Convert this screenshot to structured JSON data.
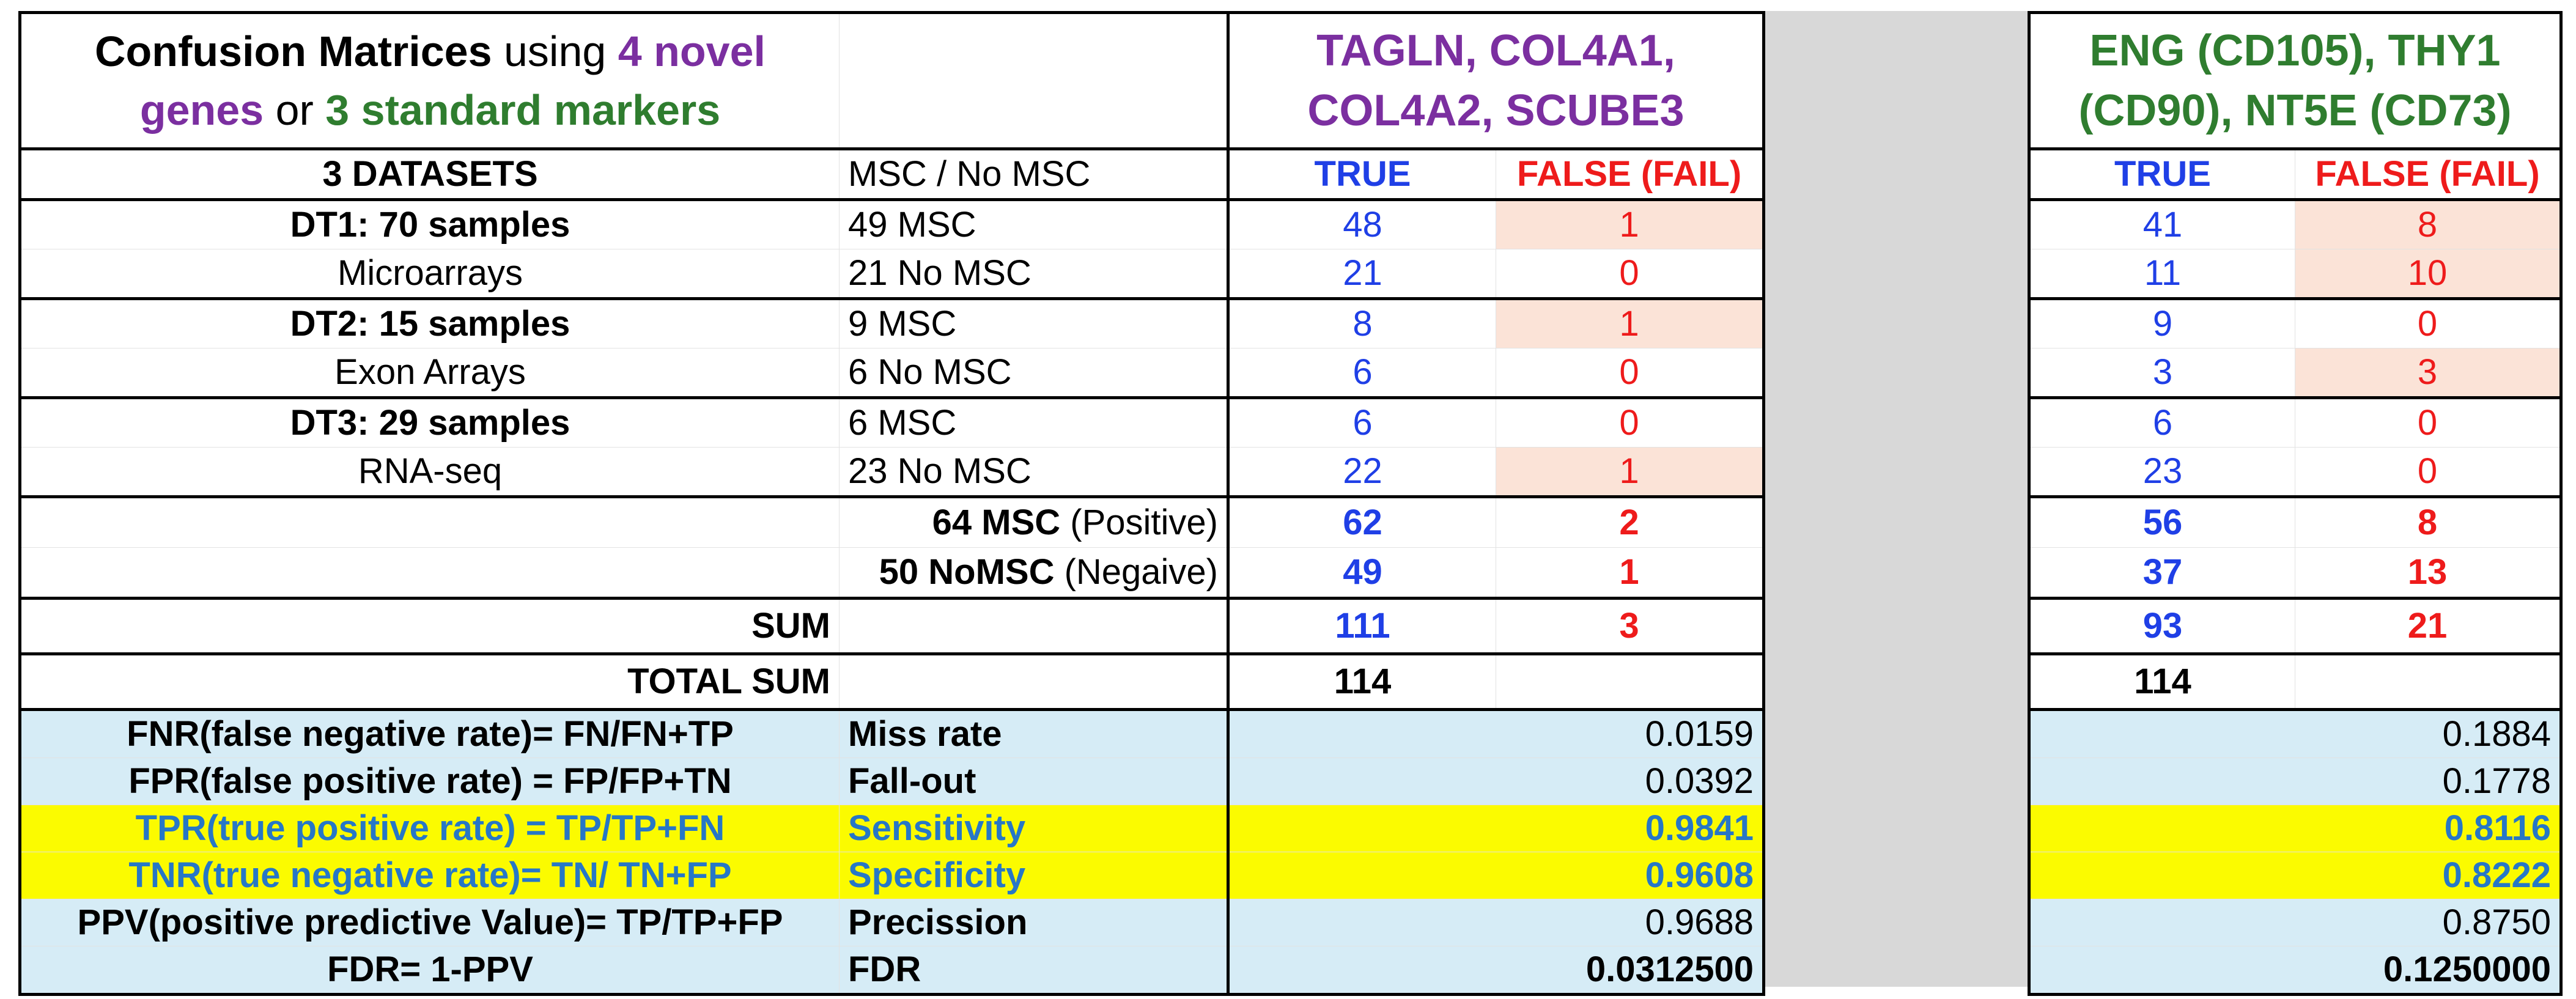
{
  "header": {
    "title_part1": "Confusion Matrices",
    "title_part2": " using ",
    "title_part3": "4 novel genes",
    "title_part4": " or ",
    "title_part5": "3 standard markers",
    "panel_a_genes": "TAGLN, COL4A1, COL4A2, SCUBE3",
    "panel_b_genes": "ENG (CD105), THY1 (CD90), NT5E (CD73)"
  },
  "columns": {
    "datasets": "3 DATASETS",
    "group": "MSC / No MSC",
    "true_label": "TRUE",
    "false_label": "FALSE (FAIL)"
  },
  "rows": [
    {
      "dataset": "DT1: 70 samples",
      "bold": true,
      "group": "49 MSC",
      "a_true": "48",
      "a_false": "1",
      "b_true": "41",
      "b_false": "8"
    },
    {
      "dataset": "Microarrays",
      "bold": false,
      "group": "21 No MSC",
      "a_true": "21",
      "a_false": "0",
      "b_true": "11",
      "b_false": "10"
    },
    {
      "dataset": "DT2: 15 samples",
      "bold": true,
      "group": "9 MSC",
      "a_true": "8",
      "a_false": "1",
      "b_true": "9",
      "b_false": "0"
    },
    {
      "dataset": "Exon Arrays",
      "bold": false,
      "group": "6 No MSC",
      "a_true": "6",
      "a_false": "0",
      "b_true": "3",
      "b_false": "3"
    },
    {
      "dataset": "DT3: 29 samples",
      "bold": true,
      "group": "6 MSC",
      "a_true": "6",
      "a_false": "0",
      "b_true": "6",
      "b_false": "0"
    },
    {
      "dataset": "RNA-seq",
      "bold": false,
      "group": "23 No MSC",
      "a_true": "22",
      "a_false": "1",
      "b_true": "23",
      "b_false": "0"
    }
  ],
  "totals": {
    "pos_bold": "64 MSC",
    "pos_suffix": " (Positive)",
    "neg_bold": "50 NoMSC",
    "neg_suffix": " (Negaive)",
    "a_pos_true": "62",
    "a_pos_false": "2",
    "a_neg_true": "49",
    "a_neg_false": "1",
    "b_pos_true": "56",
    "b_pos_false": "8",
    "b_neg_true": "37",
    "b_neg_false": "13",
    "sum_label": "SUM",
    "a_sum_true": "111",
    "a_sum_false": "3",
    "b_sum_true": "93",
    "b_sum_false": "21",
    "total_label": "TOTAL SUM",
    "a_total": "114",
    "b_total": "114"
  },
  "stats": [
    {
      "formula": "FNR(false negative rate)= FN/FN+TP",
      "name": "Miss rate",
      "a": "0.0159",
      "b": "0.1884"
    },
    {
      "formula": "FPR(false positive rate) = FP/FP+TN",
      "name": "Fall-out",
      "a": "0.0392",
      "b": "0.1778"
    },
    {
      "formula": "TPR(true positive rate) = TP/TP+FN",
      "name": "Sensitivity",
      "a": "0.9841",
      "b": "0.8116"
    },
    {
      "formula": "TNR(true negative rate)= TN/ TN+FP",
      "name": "Specificity",
      "a": "0.9608",
      "b": "0.8222"
    },
    {
      "formula": "PPV(positive predictive Value)= TP/TP+FP",
      "name": "Precission",
      "a": "0.9688",
      "b": "0.8750"
    },
    {
      "formula": "FDR= 1-PPV",
      "name": "FDR",
      "a": "0.0312500",
      "b": "0.1250000"
    }
  ],
  "colors": {
    "true_blue": "#1f3fe6",
    "false_red": "#ee1b1b",
    "novel_purple": "#7b2fa0",
    "standard_green": "#2f7d2f",
    "fail_highlight": "#fbe3d7",
    "stats_background": "#d6ecf6",
    "key_stats_highlight": "#fbfb00"
  }
}
